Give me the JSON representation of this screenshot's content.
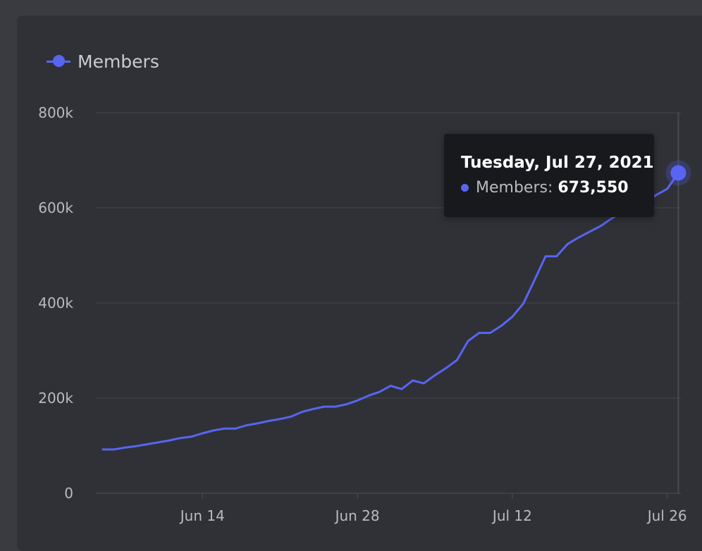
{
  "colors": {
    "background": "#3a3b40",
    "card": "#2f3136",
    "series": "#5865f2",
    "grid": "#46474c",
    "tooltip_bg": "#18191c"
  },
  "legend": {
    "label": "Members",
    "marker_icon": "line-dot-marker-icon"
  },
  "tooltip": {
    "title": "Tuesday, Jul 27, 2021",
    "series_label": "Members:",
    "value": "673,550"
  },
  "chart_data": {
    "type": "line",
    "title": "",
    "xlabel": "",
    "ylabel": "",
    "ylim": [
      0,
      800000
    ],
    "y_ticks": [
      0,
      200000,
      400000,
      600000,
      800000
    ],
    "y_tick_labels": [
      "0",
      "200k",
      "400k",
      "600k",
      "800k"
    ],
    "x_tick_labels": [
      "Jun 14",
      "Jun 28",
      "Jul 12",
      "Jul 26"
    ],
    "x_tick_dates": [
      "2021-06-14",
      "2021-06-28",
      "2021-07-12",
      "2021-07-26"
    ],
    "xlim": [
      "2021-06-05",
      "2021-07-27"
    ],
    "grid": true,
    "legend_position": "top-left",
    "highlight": {
      "x": "2021-07-27",
      "y": 673550
    },
    "series": [
      {
        "name": "Members",
        "color": "#5865f2",
        "x": [
          "2021-06-05",
          "2021-06-06",
          "2021-06-07",
          "2021-06-08",
          "2021-06-09",
          "2021-06-10",
          "2021-06-11",
          "2021-06-12",
          "2021-06-13",
          "2021-06-14",
          "2021-06-15",
          "2021-06-16",
          "2021-06-17",
          "2021-06-18",
          "2021-06-19",
          "2021-06-20",
          "2021-06-21",
          "2021-06-22",
          "2021-06-23",
          "2021-06-24",
          "2021-06-25",
          "2021-06-26",
          "2021-06-27",
          "2021-06-28",
          "2021-06-29",
          "2021-06-30",
          "2021-07-01",
          "2021-07-02",
          "2021-07-03",
          "2021-07-04",
          "2021-07-05",
          "2021-07-06",
          "2021-07-07",
          "2021-07-08",
          "2021-07-09",
          "2021-07-10",
          "2021-07-11",
          "2021-07-12",
          "2021-07-13",
          "2021-07-14",
          "2021-07-15",
          "2021-07-16",
          "2021-07-17",
          "2021-07-18",
          "2021-07-19",
          "2021-07-20",
          "2021-07-21",
          "2021-07-22",
          "2021-07-23",
          "2021-07-24",
          "2021-07-25",
          "2021-07-26",
          "2021-07-27"
        ],
        "y": [
          92000,
          92000,
          96000,
          99000,
          103000,
          107000,
          111000,
          116000,
          119000,
          126000,
          132000,
          136000,
          136000,
          143000,
          147000,
          152000,
          156000,
          161000,
          171000,
          177000,
          182000,
          182000,
          187000,
          195000,
          205000,
          213000,
          226000,
          219000,
          237000,
          231000,
          248000,
          263000,
          280000,
          320000,
          337000,
          337000,
          352000,
          371000,
          399000,
          448000,
          498000,
          498000,
          524000,
          538000,
          550000,
          562000,
          578000,
          592000,
          603000,
          613000,
          627000,
          640000,
          673550
        ]
      }
    ]
  }
}
